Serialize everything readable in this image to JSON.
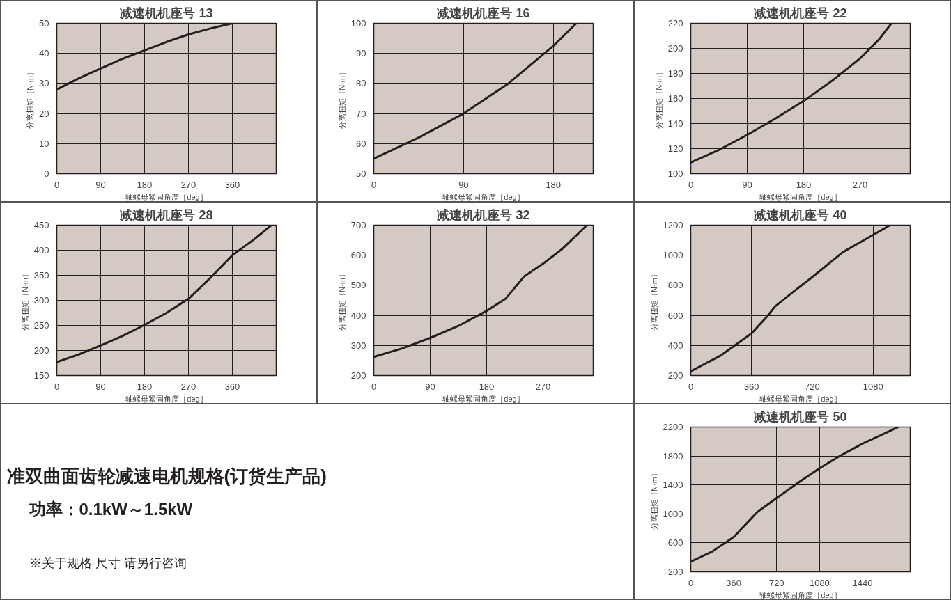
{
  "chart_data": [
    {
      "type": "line",
      "title": "减速机机座号 13",
      "xlabel": "轴螺母紧固角度［deg］",
      "ylabel": "分离扭矩［N·m］",
      "xlim": [
        0,
        450
      ],
      "ylim": [
        0,
        50
      ],
      "xticks": [
        0,
        90,
        180,
        270,
        360
      ],
      "yticks": [
        0,
        10,
        20,
        30,
        40,
        50
      ],
      "grid": true,
      "series": [
        {
          "color": "#231f20",
          "x": [
            0,
            45,
            90,
            135,
            180,
            225,
            270,
            315,
            360
          ],
          "values": [
            28,
            31.7,
            35,
            38.2,
            41,
            43.8,
            46.3,
            48.3,
            50
          ]
        }
      ]
    },
    {
      "type": "line",
      "title": "减速机机座号 16",
      "xlabel": "轴螺母紧固角度［deg］",
      "ylabel": "分离扭矩［N·m］",
      "xlim": [
        0,
        220
      ],
      "ylim": [
        50,
        100
      ],
      "xticks": [
        0,
        90,
        180
      ],
      "yticks": [
        50,
        60,
        70,
        80,
        90,
        100
      ],
      "grid": true,
      "series": [
        {
          "color": "#231f20",
          "x": [
            0,
            45,
            90,
            135,
            180,
            203
          ],
          "values": [
            55,
            62,
            70,
            80,
            92.5,
            100
          ]
        }
      ]
    },
    {
      "type": "line",
      "title": "减速机机座号 22",
      "xlabel": "轴螺母紧固角度［deg］",
      "ylabel": "分离扭矩［N·m］",
      "xlim": [
        0,
        350
      ],
      "ylim": [
        100,
        220
      ],
      "xticks": [
        0,
        90,
        180,
        270
      ],
      "yticks": [
        100,
        120,
        140,
        160,
        180,
        200,
        220
      ],
      "grid": true,
      "series": [
        {
          "color": "#231f20",
          "x": [
            0,
            45,
            90,
            135,
            180,
            225,
            270,
            300,
            320
          ],
          "values": [
            109,
            119,
            131,
            144,
            158,
            174,
            192,
            207,
            220
          ]
        }
      ]
    },
    {
      "type": "line",
      "title": "减速机机座号 28",
      "xlabel": "轴螺母紧固角度［deg］",
      "ylabel": "分离扭矩［N·m］",
      "xlim": [
        0,
        450
      ],
      "ylim": [
        150,
        450
      ],
      "xticks": [
        0,
        90,
        180,
        270,
        360
      ],
      "yticks": [
        150,
        200,
        250,
        300,
        350,
        400,
        450
      ],
      "grid": true,
      "series": [
        {
          "color": "#231f20",
          "x": [
            0,
            45,
            90,
            135,
            180,
            225,
            270,
            315,
            360,
            405,
            440
          ],
          "values": [
            177,
            192,
            210,
            229,
            251,
            275,
            303,
            345,
            390,
            422,
            450
          ]
        }
      ]
    },
    {
      "type": "line",
      "title": "减速机机座号 32",
      "xlabel": "轴螺母紧固角度［deg］",
      "ylabel": "分离扭矩［N·m］",
      "xlim": [
        0,
        350
      ],
      "ylim": [
        200,
        700
      ],
      "xticks": [
        0,
        90,
        180,
        270
      ],
      "yticks": [
        200,
        300,
        400,
        500,
        600,
        700
      ],
      "grid": true,
      "series": [
        {
          "color": "#231f20",
          "x": [
            0,
            45,
            90,
            135,
            180,
            210,
            240,
            270,
            300,
            340
          ],
          "values": [
            262,
            290,
            325,
            365,
            415,
            455,
            530,
            572,
            620,
            700
          ]
        }
      ]
    },
    {
      "type": "line",
      "title": "减速机机座号 40",
      "xlabel": "轴螺母紧固角度［deg］",
      "ylabel": "分离扭矩［N·m］",
      "xlim": [
        0,
        1300
      ],
      "ylim": [
        200,
        1200
      ],
      "xticks": [
        0,
        360,
        720,
        1080
      ],
      "yticks": [
        200,
        400,
        600,
        800,
        1000,
        1200
      ],
      "grid": true,
      "series": [
        {
          "color": "#231f20",
          "x": [
            0,
            180,
            360,
            450,
            500,
            600,
            720,
            900,
            1080,
            1180
          ],
          "values": [
            228,
            335,
            480,
            590,
            660,
            750,
            855,
            1020,
            1135,
            1200
          ]
        }
      ]
    },
    {
      "type": "other",
      "annotations": [
        "准双曲面齿轮减速电机规格(订货生产品)",
        "功率：0.1kW～1.5kW",
        "※关于规格 尺寸 请另行咨询"
      ]
    },
    {
      "type": "line",
      "title": "减速机机座号 50",
      "xlabel": "轴螺母紧固角度［deg］",
      "ylabel": "分离扭矩［N·m］",
      "xlim": [
        0,
        1840
      ],
      "ylim": [
        200,
        2200
      ],
      "xticks": [
        0,
        360,
        720,
        1080,
        1440
      ],
      "yticks": [
        200,
        600,
        1000,
        1400,
        1800,
        2200
      ],
      "grid": true,
      "series": [
        {
          "color": "#231f20",
          "x": [
            0,
            180,
            360,
            560,
            720,
            900,
            1080,
            1260,
            1440,
            1740
          ],
          "values": [
            340,
            480,
            680,
            1030,
            1220,
            1430,
            1630,
            1810,
            1970,
            2200
          ]
        }
      ]
    }
  ]
}
